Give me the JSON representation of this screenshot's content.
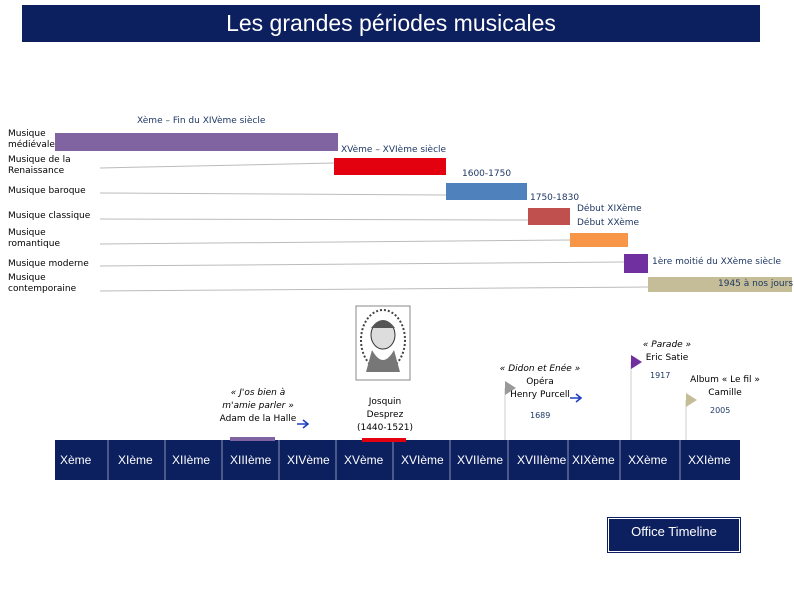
{
  "title": "Les grandes périodes musicales",
  "periods": [
    {
      "name": "Musique médiévale",
      "dates": [
        "Xème – Fin du XIVème siècle"
      ],
      "color": "#8064a2"
    },
    {
      "name": "Musique de la Renaissance",
      "dates": [
        "XVème – XVIème siècle"
      ],
      "color": "#e3000f"
    },
    {
      "name": "Musique baroque",
      "dates": [
        "1600-1750"
      ],
      "color": "#4f81bd"
    },
    {
      "name": "Musique classique",
      "dates": [
        "1750-1830"
      ],
      "color": "#c0504d"
    },
    {
      "name": "Musique romantique",
      "dates": [
        "Début XIXème",
        "Début XXème"
      ],
      "color": "#f79646"
    },
    {
      "name": "Musique moderne",
      "dates": [
        "1ère moitié du XXème siècle"
      ],
      "color": "#7030a0"
    },
    {
      "name": "Musique contemporaine",
      "dates": [
        "1945 à nos jours"
      ],
      "color": "#c4bd97"
    }
  ],
  "centuries": [
    "Xème",
    "XIème",
    "XIIème",
    "XIIIème",
    "XIVème",
    "XVème",
    "XVIème",
    "XVIIème",
    "XVIIIème",
    "XIXème",
    "XXème",
    "XXIème"
  ],
  "events": [
    {
      "lines": [
        "« J'os bien à",
        "m'amie parler »",
        "Adam de la Halle"
      ]
    },
    {
      "lines": [
        "Josquin",
        "Desprez",
        "(1440-1521)"
      ]
    },
    {
      "lines": [
        "« Didon et Enée »",
        "Opéra",
        "Henry Purcell"
      ],
      "year": "1689"
    },
    {
      "lines": [
        "« Parade »",
        "Eric Satie"
      ],
      "year": "1917"
    },
    {
      "lines": [
        "Album « Le fil »",
        "Camille"
      ],
      "year": "2005"
    }
  ],
  "footer": "Office Timeline"
}
